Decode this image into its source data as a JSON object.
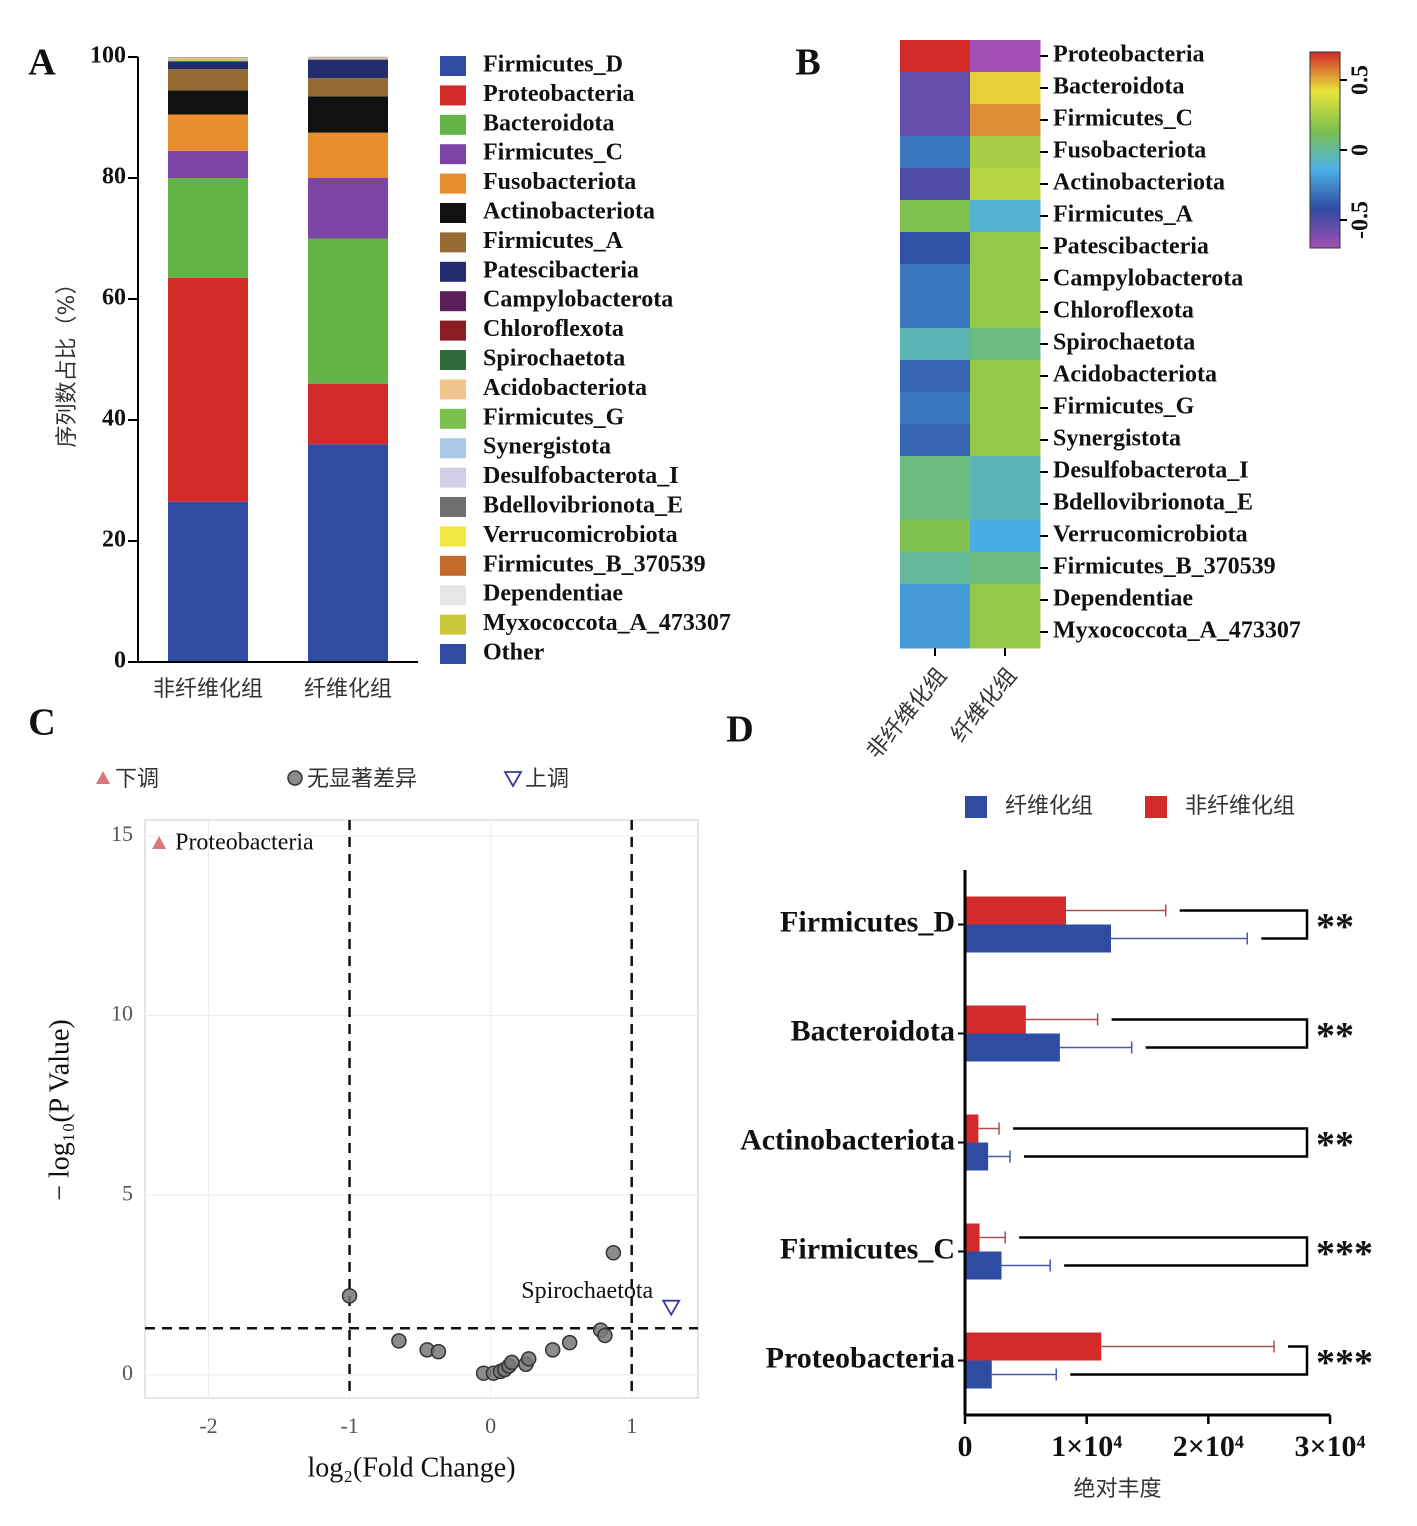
{
  "chart_data": [
    {
      "type": "bar",
      "panel": "A",
      "stacked": true,
      "ylabel": "序列数占比（%）",
      "categories": [
        "非纤维化组",
        "纤维化组"
      ],
      "ylim": [
        0,
        100
      ],
      "yticks": [
        0,
        20,
        40,
        60,
        80,
        100
      ],
      "series": [
        {
          "name": "Firmicutes_D",
          "color": "#2f4ca3",
          "values": [
            26.5,
            36
          ]
        },
        {
          "name": "Proteobacteria",
          "color": "#d42a2a",
          "values": [
            37,
            10
          ]
        },
        {
          "name": "Bacteroidota",
          "color": "#63b346",
          "values": [
            16.5,
            24
          ]
        },
        {
          "name": "Firmicutes_C",
          "color": "#7d43a6",
          "values": [
            4.5,
            10
          ]
        },
        {
          "name": "Fusobacteriota",
          "color": "#e88e2e",
          "values": [
            6,
            7.5
          ]
        },
        {
          "name": "Actinobacteriota",
          "color": "#111111",
          "values": [
            4,
            6
          ]
        },
        {
          "name": "Firmicutes_A",
          "color": "#946c33",
          "values": [
            3.5,
            3
          ]
        },
        {
          "name": "Patescibacteria",
          "color": "#232c6e",
          "values": [
            1.2,
            3
          ]
        },
        {
          "name": "Campylobacterota",
          "color": "#5a1f5a",
          "values": [
            0.06,
            0.04
          ]
        },
        {
          "name": "Chloroflexota",
          "color": "#8b1c24",
          "values": [
            0.06,
            0.04
          ]
        },
        {
          "name": "Spirochaetota",
          "color": "#2e6b3a",
          "values": [
            0.06,
            0.04
          ]
        },
        {
          "name": "Acidobacteriota",
          "color": "#f2c48e",
          "values": [
            0.06,
            0.04
          ]
        },
        {
          "name": "Firmicutes_G",
          "color": "#7cc04e",
          "values": [
            0.06,
            0.04
          ]
        },
        {
          "name": "Synergistota",
          "color": "#aac9ea",
          "values": [
            0.06,
            0.04
          ]
        },
        {
          "name": "Desulfobacterota_I",
          "color": "#d4cde8",
          "values": [
            0.06,
            0.04
          ]
        },
        {
          "name": "Bdellovibrionota_E",
          "color": "#6f6f6f",
          "values": [
            0.06,
            0.04
          ]
        },
        {
          "name": "Verrucomicrobiota",
          "color": "#f2e640",
          "values": [
            0.06,
            0.04
          ]
        },
        {
          "name": "Firmicutes_B_370539",
          "color": "#c4692a",
          "values": [
            0.06,
            0.04
          ]
        },
        {
          "name": "Dependentiae",
          "color": "#e6e6e6",
          "values": [
            0.06,
            0.04
          ]
        },
        {
          "name": "Myxococcota_A_473307",
          "color": "#c9c83a",
          "values": [
            0.06,
            0.04
          ]
        },
        {
          "name": "Other",
          "color": "#2f4ca3",
          "values": [
            0.06,
            0.04
          ]
        }
      ]
    },
    {
      "type": "heatmap",
      "panel": "B",
      "x": [
        "非纤维化组",
        "纤维化组"
      ],
      "y": [
        "Proteobacteria",
        "Bacteroidota",
        "Firmicutes_C",
        "Fusobacteriota",
        "Actinobacteriota",
        "Firmicutes_A",
        "Patescibacteria",
        "Campylobacterota",
        "Chloroflexota",
        "Spirochaetota",
        "Acidobacteriota",
        "Firmicutes_G",
        "Synergistota",
        "Desulfobacterota_I",
        "Bdellovibrionota_E",
        "Verrucomicrobiota",
        "Firmicutes_B_370539",
        "Dependentiae",
        "Myxococcota_A_473307"
      ],
      "values": [
        [
          0.7,
          -0.7
        ],
        [
          -0.55,
          0.45
        ],
        [
          -0.55,
          0.55
        ],
        [
          -0.3,
          0.25
        ],
        [
          -0.5,
          0.3
        ],
        [
          0.15,
          -0.1
        ],
        [
          -0.4,
          0.2
        ],
        [
          -0.3,
          0.2
        ],
        [
          -0.3,
          0.2
        ],
        [
          -0.05,
          0.05
        ],
        [
          -0.35,
          0.2
        ],
        [
          -0.3,
          0.2
        ],
        [
          -0.35,
          0.2
        ],
        [
          0.05,
          -0.05
        ],
        [
          0.05,
          -0.05
        ],
        [
          0.15,
          -0.15
        ],
        [
          0.0,
          0.05
        ],
        [
          -0.2,
          0.2
        ],
        [
          -0.2,
          0.2
        ]
      ],
      "clim": [
        -0.7,
        0.7
      ],
      "cticks": [
        0.5,
        0,
        -0.5
      ],
      "colorscale": [
        "#a24fb5",
        "#2f4ca3",
        "#4bb0e6",
        "#7cc04e",
        "#e8e43a",
        "#d42a2a"
      ]
    },
    {
      "type": "scatter",
      "panel": "C",
      "xlabel": "log₂(Fold Change)",
      "ylabel": "− log₁₀(P Value)",
      "xlim": [
        -2.45,
        1.47
      ],
      "ylim": [
        -0.64,
        15.44
      ],
      "xticks": [
        -2,
        -1,
        0,
        1
      ],
      "yticks": [
        0,
        5,
        10,
        15
      ],
      "vlines": [
        -1,
        1
      ],
      "hlines": [
        1.3
      ],
      "grid": true,
      "series": [
        {
          "name": "下调",
          "marker": "triangle-up",
          "color": "#d9777a",
          "x": [
            -2.35
          ],
          "y": [
            14.8
          ],
          "labels": [
            "Proteobacteria"
          ],
          "label_color": "#a8262b"
        },
        {
          "name": "无显著差异",
          "marker": "circle",
          "color": "#777777",
          "x": [
            -1,
            -0.65,
            -0.45,
            -0.37,
            -0.05,
            0.02,
            0.07,
            0.1,
            0.13,
            0.15,
            0.25,
            0.27,
            0.44,
            0.56,
            0.78,
            0.81,
            0.87
          ],
          "y": [
            2.2,
            0.95,
            0.7,
            0.65,
            0.05,
            0.05,
            0.1,
            0.15,
            0.25,
            0.35,
            0.3,
            0.45,
            0.7,
            0.9,
            1.25,
            1.1,
            3.4
          ]
        },
        {
          "name": "上调",
          "marker": "triangle-down-open",
          "color": "#3a3a9b",
          "x": [
            1.28
          ],
          "y": [
            1.9
          ],
          "labels": [
            "Spirochaetota"
          ],
          "label_color": "#2a2a8b"
        }
      ]
    },
    {
      "type": "bar",
      "panel": "D",
      "horizontal": true,
      "xlabel": "绝对丰度",
      "categories": [
        "Firmicutes_D",
        "Bacteroidota",
        "Actinobacteriota",
        "Firmicutes_C",
        "Proteobacteria"
      ],
      "xlim": [
        0,
        30000
      ],
      "xticks": [
        0,
        {
          "value": 10000,
          "label": "1×10⁴"
        },
        {
          "value": 20000,
          "label": "2×10⁴"
        },
        {
          "value": 30000,
          "label": "3×10⁴"
        }
      ],
      "series": [
        {
          "name": "纤维化组",
          "color": "#2f4ca3",
          "error_color": "#4a56b0",
          "values": [
            12000,
            7800,
            1900,
            3000,
            2200
          ],
          "errors": [
            11200,
            5900,
            1800,
            4000,
            5300
          ]
        },
        {
          "name": "非纤维化组",
          "color": "#d42a2a",
          "error_color": "#a85050",
          "values": [
            8300,
            5000,
            1100,
            1200,
            11200
          ],
          "errors": [
            8200,
            5900,
            1700,
            2100,
            14200
          ]
        }
      ],
      "significance": [
        "**",
        "**",
        "**",
        "***",
        "***"
      ]
    }
  ]
}
